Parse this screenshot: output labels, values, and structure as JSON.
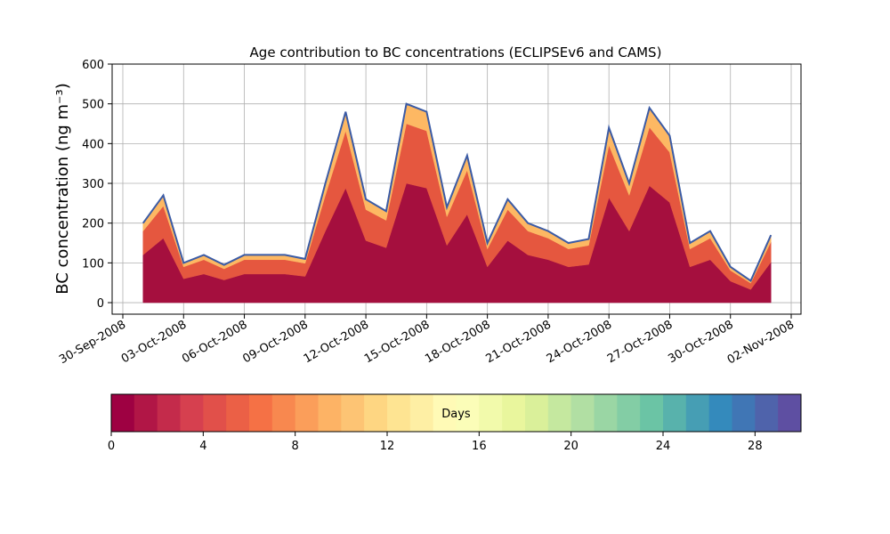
{
  "chart_data": {
    "type": "stacked_area",
    "title": "Age contribution to BC concentrations (ECLIPSEv6 and CAMS)",
    "y_label": "BC concentration (ng m⁻³)",
    "x": [
      "2008-10-01",
      "2008-10-02",
      "2008-10-03",
      "2008-10-04",
      "2008-10-05",
      "2008-10-06",
      "2008-10-07",
      "2008-10-08",
      "2008-10-09",
      "2008-10-10",
      "2008-10-11",
      "2008-10-12",
      "2008-10-13",
      "2008-10-14",
      "2008-10-15",
      "2008-10-16",
      "2008-10-17",
      "2008-10-18",
      "2008-10-19",
      "2008-10-20",
      "2008-10-21",
      "2008-10-22",
      "2008-10-23",
      "2008-10-24",
      "2008-10-25",
      "2008-10-26",
      "2008-10-27",
      "2008-10-28",
      "2008-10-29",
      "2008-10-30",
      "2008-10-31",
      "2008-11-01"
    ],
    "series": [
      {
        "color": "#a50f3e",
        "values": [
          120,
          162,
          60,
          72,
          57,
          72,
          72,
          72,
          66,
          180,
          288,
          156,
          138,
          300,
          288,
          144,
          222,
          90,
          156,
          120,
          108,
          90,
          96,
          264,
          180,
          294,
          252,
          90,
          108,
          54,
          33,
          102
        ]
      },
      {
        "color": "#e5573f",
        "values": [
          60,
          81,
          30,
          36,
          28,
          36,
          36,
          36,
          33,
          90,
          144,
          78,
          69,
          150,
          144,
          72,
          111,
          45,
          78,
          60,
          54,
          45,
          48,
          132,
          90,
          147,
          126,
          45,
          54,
          27,
          16,
          51
        ]
      },
      {
        "color": "#fdb863",
        "values": [
          20,
          27,
          10,
          12,
          10,
          12,
          12,
          12,
          11,
          30,
          48,
          26,
          23,
          50,
          48,
          24,
          37,
          15,
          26,
          20,
          18,
          15,
          16,
          44,
          30,
          49,
          42,
          15,
          18,
          9,
          6,
          17
        ]
      }
    ],
    "outline_color": "#3b5ba5",
    "xlim": [
      "2008-09-30",
      "2008-11-02"
    ],
    "xticks": [
      {
        "value": "2008-09-30",
        "label": "30-Sep-2008"
      },
      {
        "value": "2008-10-03",
        "label": "03-Oct-2008"
      },
      {
        "value": "2008-10-06",
        "label": "06-Oct-2008"
      },
      {
        "value": "2008-10-09",
        "label": "09-Oct-2008"
      },
      {
        "value": "2008-10-12",
        "label": "12-Oct-2008"
      },
      {
        "value": "2008-10-15",
        "label": "15-Oct-2008"
      },
      {
        "value": "2008-10-18",
        "label": "18-Oct-2008"
      },
      {
        "value": "2008-10-21",
        "label": "21-Oct-2008"
      },
      {
        "value": "2008-10-24",
        "label": "24-Oct-2008"
      },
      {
        "value": "2008-10-27",
        "label": "27-Oct-2008"
      },
      {
        "value": "2008-10-30",
        "label": "30-Oct-2008"
      },
      {
        "value": "2008-11-02",
        "label": "02-Nov-2008"
      }
    ],
    "ylim": [
      -29,
      600
    ],
    "yticks": [
      0,
      100,
      200,
      300,
      400,
      500,
      600
    ],
    "grid": true,
    "colorbar": {
      "label": "Days",
      "clim": [
        0,
        30
      ],
      "levels": 30,
      "ticks": [
        0,
        4,
        8,
        12,
        16,
        20,
        24,
        28
      ],
      "colors": [
        "#9e0142",
        "#d53e4f",
        "#f46d43",
        "#fdae61",
        "#fee08b",
        "#ffffbf",
        "#e6f598",
        "#abdda4",
        "#66c2a5",
        "#3288bd",
        "#5e4fa2"
      ]
    }
  }
}
